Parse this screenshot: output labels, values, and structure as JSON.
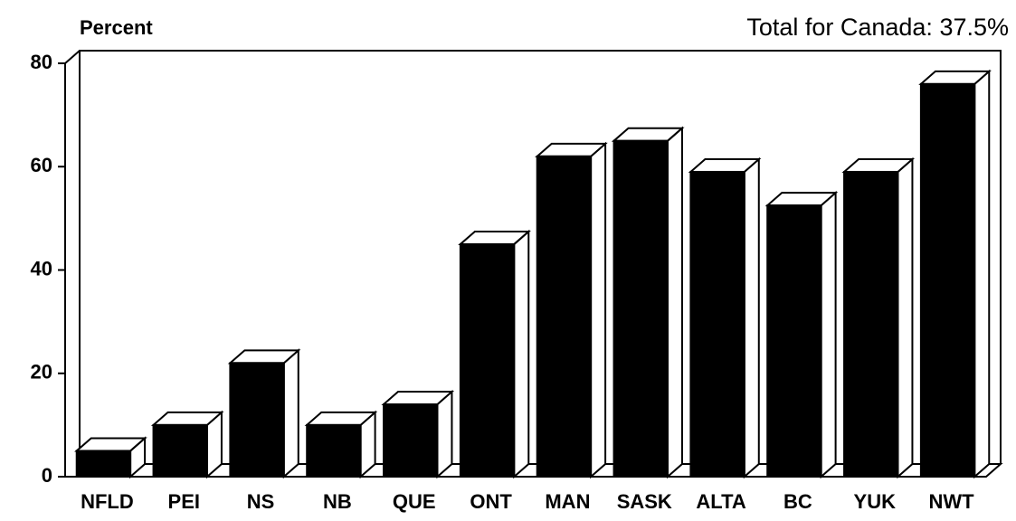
{
  "chart_data": {
    "type": "bar3d",
    "title": "Total for Canada: 37.5%",
    "y_label": "Percent",
    "categories": [
      "NFLD",
      "PEI",
      "NS",
      "NB",
      "QUE",
      "ONT",
      "MAN",
      "SASK",
      "ALTA",
      "BC",
      "YUK",
      "NWT"
    ],
    "values": [
      5,
      10,
      22,
      10,
      14,
      45,
      62,
      65,
      59,
      52.5,
      59,
      76
    ],
    "color": "#000000",
    "ylim": [
      0,
      80
    ],
    "yticks": [
      0,
      20,
      40,
      60,
      80
    ],
    "grid": false
  }
}
